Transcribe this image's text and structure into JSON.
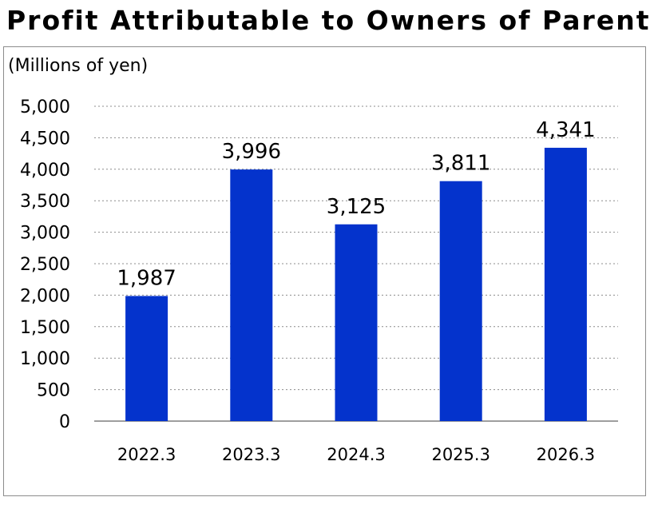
{
  "chart_data": {
    "type": "bar",
    "title": "Profit Attributable to Owners of Parent",
    "unit_label": "(Millions of yen)",
    "categories": [
      "2022.3",
      "2023.3",
      "2024.3",
      "2025.3",
      "2026.3"
    ],
    "values": [
      1987,
      3996,
      3125,
      3811,
      4341
    ],
    "value_labels": [
      "1,987",
      "3,996",
      "3,125",
      "3,811",
      "4,341"
    ],
    "y_ticks": [
      "0",
      "500",
      "1,000",
      "1,500",
      "2,000",
      "2,500",
      "3,000",
      "3,500",
      "4,000",
      "4,500",
      "5,000"
    ],
    "ylim": [
      0,
      5000
    ],
    "bar_color": "#0433cc",
    "gridlines": "dotted",
    "legend": "none"
  }
}
